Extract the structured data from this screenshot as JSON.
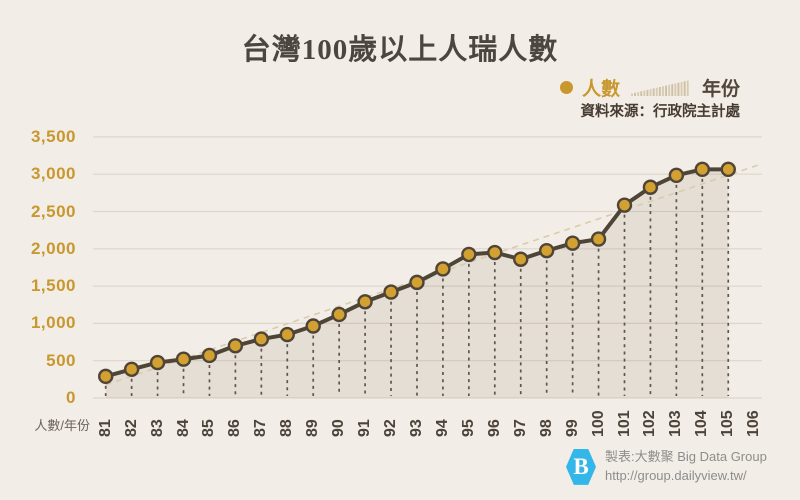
{
  "header": {
    "title": "台灣100歲以上人瑞人數"
  },
  "legend": {
    "series_label": "人數",
    "axis_label": "年份"
  },
  "source": "資料來源：行政院主計處",
  "axis_caption": "人數/年份",
  "footer": {
    "credit_line1": "製表:大數聚 Big Data Group",
    "credit_line2": "http://group.dailyview.tw/",
    "logo_letter": "B"
  },
  "colors": {
    "background": "#f2ede6",
    "gold": "#c8982f",
    "point_fill": "#d3a032",
    "line": "#4f4537",
    "grid": "#ddd6cc",
    "area_fill": "#5d4a2c",
    "vertical_dash": "#5d564c",
    "trend_dash": "#d9cbae",
    "x_label": "#4c443a",
    "title_text": "#4b463e",
    "credit_text": "#8d8d8d",
    "logo_blue": "#33b7e8"
  },
  "chart_data": {
    "type": "area",
    "title": "台灣100歲以上人瑞人數",
    "xlabel": "年份",
    "ylabel": "人數",
    "ylim": [
      0,
      3500
    ],
    "ytick_step": 500,
    "grid": true,
    "legend_position": "top-right",
    "categories": [
      81,
      82,
      83,
      84,
      85,
      86,
      87,
      88,
      89,
      90,
      91,
      92,
      93,
      94,
      95,
      96,
      97,
      98,
      99,
      100,
      101,
      102,
      103,
      104,
      105
    ],
    "extra_x_ticks": [
      106
    ],
    "series": [
      {
        "name": "人數",
        "values": [
          290,
          385,
          475,
          520,
          570,
          700,
          790,
          850,
          965,
          1120,
          1290,
          1420,
          1550,
          1730,
          1925,
          1950,
          1860,
          1975,
          2075,
          2130,
          2585,
          2825,
          2985,
          3065,
          3065
        ]
      }
    ],
    "trend_line": {
      "start_value": 175,
      "end_value": 3140
    }
  }
}
